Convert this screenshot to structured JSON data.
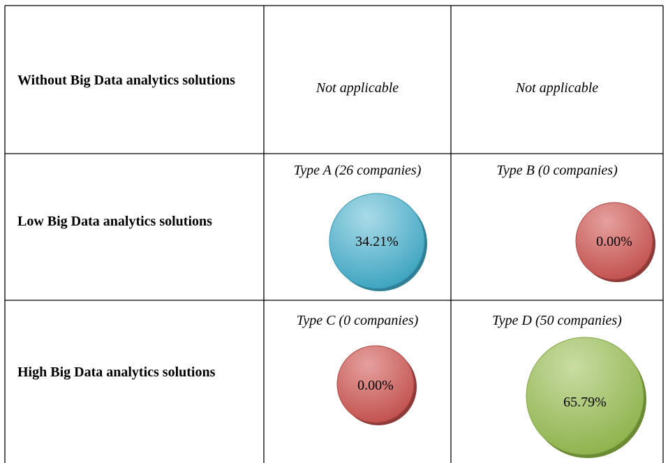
{
  "table": {
    "rows": [
      {
        "label": "Without Big Data analytics solutions",
        "cells": [
          {
            "text": "Not applicable"
          },
          {
            "text": "Not applicable"
          }
        ]
      },
      {
        "label": "Low Big Data analytics solutions",
        "cells": [
          {
            "title": "Type A (26 companies)",
            "value": "34.21%"
          },
          {
            "title": "Type B (0 companies)",
            "value": "0.00%"
          }
        ]
      },
      {
        "label": "High Big Data analytics solutions",
        "cells": [
          {
            "title": "Type C (0 companies)",
            "value": "0.00%"
          },
          {
            "title": "Type D (50 companies)",
            "value": "65.79%"
          }
        ]
      }
    ]
  }
}
